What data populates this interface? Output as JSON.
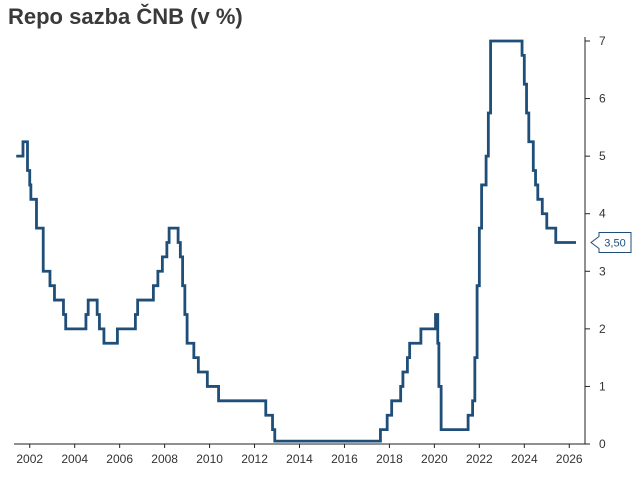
{
  "chart_data": {
    "type": "line",
    "title": "Repo sazba ČNB (v %)",
    "xlabel": "",
    "ylabel": "",
    "x_ticks": [
      2002,
      2004,
      2006,
      2008,
      2010,
      2012,
      2014,
      2016,
      2018,
      2020,
      2022,
      2024,
      2026
    ],
    "y_ticks": [
      0,
      1,
      2,
      3,
      4,
      5,
      6,
      7
    ],
    "xlim": [
      2001.3,
      2026.7
    ],
    "ylim": [
      0,
      7
    ],
    "y_axis_side": "right",
    "grid": false,
    "legend": "none",
    "line_color": "#1f4e79",
    "last_value_label": "3,50",
    "series": [
      {
        "step": true,
        "points": [
          [
            2001.4,
            5.0
          ],
          [
            2001.7,
            5.25
          ],
          [
            2001.9,
            4.75
          ],
          [
            2002.0,
            4.5
          ],
          [
            2002.05,
            4.25
          ],
          [
            2002.3,
            3.75
          ],
          [
            2002.6,
            3.0
          ],
          [
            2002.9,
            2.75
          ],
          [
            2003.1,
            2.5
          ],
          [
            2003.5,
            2.25
          ],
          [
            2003.6,
            2.0
          ],
          [
            2004.5,
            2.25
          ],
          [
            2004.6,
            2.5
          ],
          [
            2005.0,
            2.25
          ],
          [
            2005.1,
            2.0
          ],
          [
            2005.3,
            1.75
          ],
          [
            2005.9,
            2.0
          ],
          [
            2006.7,
            2.25
          ],
          [
            2006.8,
            2.5
          ],
          [
            2007.5,
            2.75
          ],
          [
            2007.7,
            3.0
          ],
          [
            2007.9,
            3.25
          ],
          [
            2008.1,
            3.5
          ],
          [
            2008.2,
            3.75
          ],
          [
            2008.6,
            3.5
          ],
          [
            2008.7,
            3.25
          ],
          [
            2008.8,
            2.75
          ],
          [
            2008.9,
            2.25
          ],
          [
            2009.0,
            1.75
          ],
          [
            2009.3,
            1.5
          ],
          [
            2009.5,
            1.25
          ],
          [
            2009.9,
            1.0
          ],
          [
            2010.4,
            0.75
          ],
          [
            2012.5,
            0.5
          ],
          [
            2012.8,
            0.25
          ],
          [
            2012.9,
            0.05
          ],
          [
            2017.6,
            0.25
          ],
          [
            2017.9,
            0.5
          ],
          [
            2018.1,
            0.75
          ],
          [
            2018.5,
            1.0
          ],
          [
            2018.6,
            1.25
          ],
          [
            2018.8,
            1.5
          ],
          [
            2018.9,
            1.75
          ],
          [
            2019.4,
            2.0
          ],
          [
            2020.05,
            2.25
          ],
          [
            2020.15,
            1.75
          ],
          [
            2020.2,
            1.0
          ],
          [
            2020.3,
            0.25
          ],
          [
            2021.5,
            0.5
          ],
          [
            2021.7,
            0.75
          ],
          [
            2021.8,
            1.5
          ],
          [
            2021.9,
            2.75
          ],
          [
            2022.0,
            3.75
          ],
          [
            2022.1,
            4.5
          ],
          [
            2022.3,
            5.0
          ],
          [
            2022.4,
            5.75
          ],
          [
            2022.5,
            7.0
          ],
          [
            2023.9,
            6.75
          ],
          [
            2024.0,
            6.25
          ],
          [
            2024.1,
            5.75
          ],
          [
            2024.2,
            5.25
          ],
          [
            2024.4,
            4.75
          ],
          [
            2024.5,
            4.5
          ],
          [
            2024.6,
            4.25
          ],
          [
            2024.8,
            4.0
          ],
          [
            2025.0,
            3.75
          ],
          [
            2025.4,
            3.5
          ],
          [
            2026.3,
            3.5
          ]
        ]
      }
    ]
  }
}
